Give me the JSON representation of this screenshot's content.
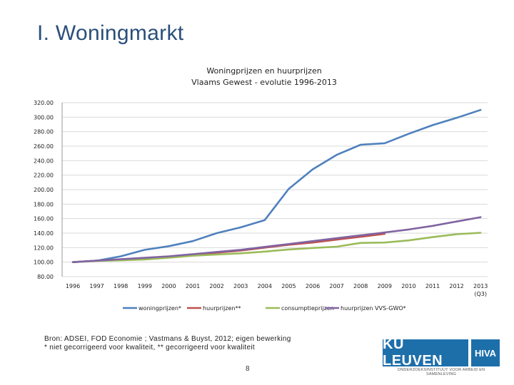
{
  "slide": {
    "title": "I. Woningmarkt",
    "page_number": "8"
  },
  "source": {
    "line1": "Bron: ADSEI, FOD Economie ; Vastmans & Buyst, 2012; eigen bewerking",
    "line2": "* niet gecorrigeerd voor kwaliteit,  ** gecorrigeerd voor kwaliteit"
  },
  "logo": {
    "main": "KU LEUVEN",
    "side": "HIVA",
    "sub": "ONDERZOEKSINSTITUUT VOOR ARBEID EN SAMENLEVING"
  },
  "chart_data": {
    "type": "line",
    "title": "Woningprijzen en huurprijzen",
    "subtitle": "Vlaams Gewest - evolutie 1996-2013",
    "xlabel": "",
    "ylabel": "",
    "ylim": [
      80,
      320
    ],
    "yticks": [
      80,
      100,
      120,
      140,
      160,
      180,
      200,
      220,
      240,
      260,
      280,
      300,
      320
    ],
    "ytick_labels": [
      "80.00",
      "100.00",
      "120.00",
      "140.00",
      "160.00",
      "180.00",
      "200.00",
      "220.00",
      "240.00",
      "260.00",
      "280.00",
      "300.00",
      "320.00"
    ],
    "categories": [
      "1996",
      "1997",
      "1998",
      "1999",
      "2000",
      "2001",
      "2002",
      "2003",
      "2004",
      "2005",
      "2006",
      "2007",
      "2008",
      "2009",
      "2010",
      "2011",
      "2012",
      "2013 (Q3)"
    ],
    "grid": true,
    "legend_position": "bottom",
    "series": [
      {
        "name": "woningprijzen*",
        "color": "#4f81bd",
        "values": [
          100,
          102,
          108,
          117,
          122,
          129,
          140,
          148,
          158,
          201,
          228,
          248,
          262,
          264,
          277,
          289,
          299,
          310
        ]
      },
      {
        "name": "huurprijzen**",
        "color": "#c0504d",
        "values": [
          100,
          102,
          103,
          104,
          107,
          110,
          113,
          116,
          120,
          124,
          127,
          131,
          135,
          139,
          null,
          null,
          null,
          null
        ]
      },
      {
        "name": "consumptieprijzen",
        "color": "#9bbb59",
        "values": [
          100,
          101.6,
          102.5,
          103.6,
          106.2,
          108.8,
          110.5,
          112.2,
          114.5,
          117.5,
          119.5,
          121.3,
          126.5,
          127,
          130,
          134.5,
          138.5,
          140.5
        ]
      },
      {
        "name": "huurprijzen VVS-GWO*",
        "color": "#8064a2",
        "values": [
          100,
          102,
          104,
          106,
          108,
          111,
          114,
          117,
          121,
          125,
          129,
          133,
          137,
          141,
          145,
          150,
          156,
          162
        ]
      }
    ]
  }
}
